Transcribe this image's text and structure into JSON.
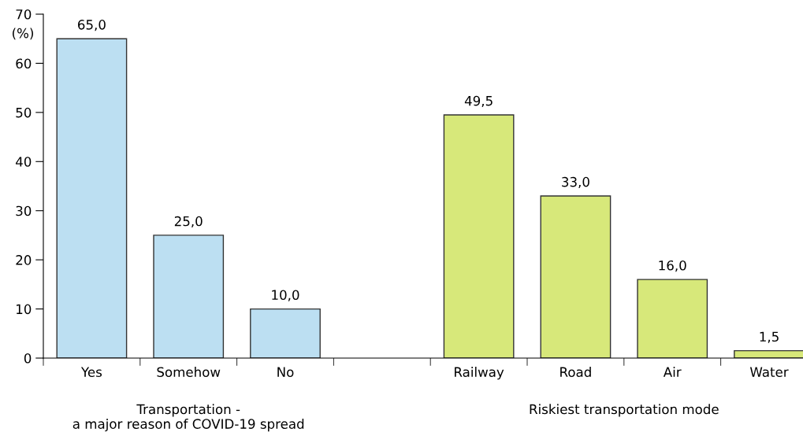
{
  "chart_data": {
    "type": "bar",
    "ylabel": "(%)",
    "categories": [
      "Yes",
      "Somehow",
      "No",
      null,
      "Railway",
      "Road",
      "Air",
      "Water"
    ],
    "values": [
      65.0,
      25.0,
      10.0,
      null,
      49.5,
      33.0,
      16.0,
      1.5
    ],
    "value_labels": [
      "65,0",
      "25,0",
      "10,0",
      null,
      "49,5",
      "33,0",
      "16,0",
      "1,5"
    ],
    "colors": [
      "#bcdff2",
      "#bcdff2",
      "#bcdff2",
      null,
      "#d7e87a",
      "#d7e87a",
      "#d7e87a",
      "#d7e87a"
    ],
    "annotations": [
      "Transportation -\na major reason of COVID-19 spread",
      "Riskiest transportation mode"
    ],
    "ylim": [
      0,
      70
    ],
    "yticks": [
      0,
      10,
      20,
      30,
      40,
      50,
      60,
      70
    ],
    "grid": false,
    "legend": false
  }
}
